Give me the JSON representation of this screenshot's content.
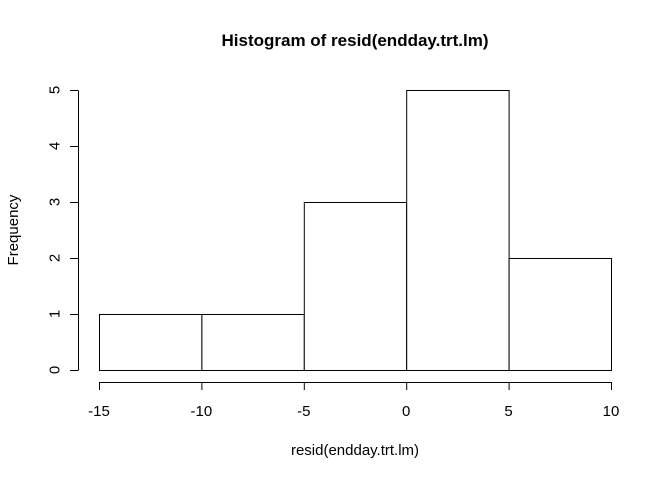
{
  "chart_data": {
    "type": "bar",
    "title": "Histogram of resid(endday.trt.lm)",
    "xlabel": "resid(endday.trt.lm)",
    "ylabel": "Frequency",
    "bins": [
      {
        "start": -15,
        "end": -10,
        "count": 1
      },
      {
        "start": -10,
        "end": -5,
        "count": 1
      },
      {
        "start": -5,
        "end": 0,
        "count": 3
      },
      {
        "start": 0,
        "end": 5,
        "count": 5
      },
      {
        "start": 5,
        "end": 10,
        "count": 2
      }
    ],
    "xlim": [
      -15,
      10
    ],
    "ylim": [
      0,
      5
    ],
    "x_ticks": [
      "-15",
      "-10",
      "-5",
      "0",
      "5",
      "10"
    ],
    "y_ticks": [
      "0",
      "1",
      "2",
      "3",
      "4",
      "5"
    ],
    "grid": false,
    "legend": "none",
    "bar_fill": "#ffffff",
    "bar_stroke": "#000000"
  }
}
